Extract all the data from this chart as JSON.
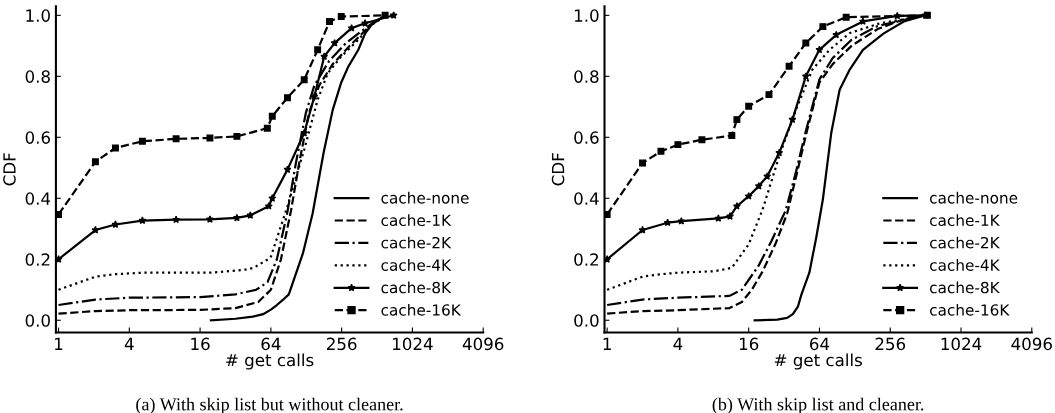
{
  "chart_data": [
    {
      "type": "line",
      "xlabel": "# get calls",
      "ylabel": "CDF",
      "log": "x",
      "xlim": [
        0.95,
        4096
      ],
      "xticks": [
        1,
        4,
        16,
        64,
        256,
        1024,
        4096
      ],
      "ylim": [
        -0.04,
        1.03
      ],
      "yticks": [
        {
          "value": 0,
          "label": "0.0"
        },
        {
          "value": 0.2,
          "label": "0.2"
        },
        {
          "value": 0.4,
          "label": "0.4"
        },
        {
          "value": 0.6,
          "label": "0.6"
        },
        {
          "value": 0.8,
          "label": "0.8"
        },
        {
          "value": 1,
          "label": "1.0"
        }
      ],
      "grid": false,
      "legend": "bottom right",
      "annotations": [
        "(a) With skip list but without cleaner."
      ],
      "series": [
        {
          "name": "cache-none",
          "color": "#000000",
          "line_style": "solid",
          "marker": "none",
          "x": [
            19.8,
            32,
            45,
            55,
            64,
            72,
            80,
            91,
            120,
            145,
            180,
            215,
            254,
            290,
            355,
            405,
            461,
            600
          ],
          "values": [
            0,
            0.005,
            0.012,
            0.02,
            0.035,
            0.05,
            0.065,
            0.085,
            0.22,
            0.35,
            0.55,
            0.69,
            0.78,
            0.83,
            0.887,
            0.94,
            0.97,
            1.0
          ]
        },
        {
          "name": "cache-1K",
          "color": "#000000",
          "line_style": "dashed",
          "marker": "none",
          "x": [
            1,
            2.06,
            4,
            16,
            32,
            50,
            64,
            78,
            95,
            112,
            135,
            165,
            215,
            300,
            405,
            491,
            622
          ],
          "values": [
            0.022,
            0.03,
            0.033,
            0.034,
            0.04,
            0.06,
            0.1,
            0.2,
            0.36,
            0.52,
            0.68,
            0.77,
            0.84,
            0.9,
            0.95,
            0.98,
            1.0
          ]
        },
        {
          "name": "cache-2K",
          "color": "#000000",
          "line_style": "dashdot",
          "marker": "none",
          "x": [
            1,
            2.06,
            4,
            16,
            32,
            48,
            60,
            72,
            88,
            105,
            127,
            150,
            200,
            280,
            400,
            491,
            622
          ],
          "values": [
            0.05,
            0.068,
            0.074,
            0.076,
            0.085,
            0.1,
            0.125,
            0.2,
            0.35,
            0.52,
            0.68,
            0.77,
            0.85,
            0.91,
            0.955,
            0.98,
            1.0
          ]
        },
        {
          "name": "cache-4K",
          "color": "#000000",
          "line_style": "dotted",
          "marker": "none",
          "x": [
            1,
            2.06,
            3.05,
            5.17,
            19.4,
            37.5,
            45.6,
            63.6,
            88.6,
            123,
            160,
            195,
            254,
            355,
            461,
            622
          ],
          "values": [
            0.1,
            0.143,
            0.151,
            0.156,
            0.156,
            0.165,
            0.172,
            0.205,
            0.374,
            0.56,
            0.723,
            0.81,
            0.865,
            0.92,
            0.969,
            1.0
          ]
        },
        {
          "name": "cache-8K",
          "color": "#000000",
          "line_style": "solid",
          "marker": "star",
          "x": [
            1,
            2.06,
            3.05,
            5.17,
            10,
            19.4,
            32.9,
            42.8,
            61.4,
            65.8,
            88.6,
            123,
            150,
            182,
            223,
            311,
            405,
            709
          ],
          "values": [
            0.2,
            0.296,
            0.314,
            0.327,
            0.33,
            0.331,
            0.336,
            0.344,
            0.374,
            0.4,
            0.494,
            0.614,
            0.734,
            0.865,
            0.909,
            0.958,
            0.974,
            1.0
          ]
        },
        {
          "name": "cache-16K",
          "color": "#000000",
          "line_style": "dashed",
          "marker": "square",
          "x": [
            1,
            2.06,
            3.05,
            5.17,
            10,
            19.4,
            32.9,
            59.7,
            65.8,
            88.6,
            123,
            160,
            202,
            254,
            600
          ],
          "values": [
            0.347,
            0.52,
            0.565,
            0.587,
            0.595,
            0.598,
            0.603,
            0.63,
            0.669,
            0.73,
            0.789,
            0.887,
            0.98,
            0.996,
            1.0
          ]
        }
      ]
    },
    {
      "type": "line",
      "xlabel": "# get calls",
      "ylabel": "CDF",
      "log": "x",
      "xlim": [
        0.95,
        4096
      ],
      "xticks": [
        1,
        4,
        16,
        64,
        256,
        1024,
        4096
      ],
      "ylim": [
        -0.04,
        1.03
      ],
      "yticks": [
        {
          "value": 0,
          "label": "0.0"
        },
        {
          "value": 0.2,
          "label": "0.2"
        },
        {
          "value": 0.4,
          "label": "0.4"
        },
        {
          "value": 0.6,
          "label": "0.6"
        },
        {
          "value": 0.8,
          "label": "0.8"
        },
        {
          "value": 1,
          "label": "1.0"
        }
      ],
      "grid": false,
      "legend": "bottom right",
      "annotations": [
        "(b) With skip list and cleaner."
      ],
      "series": [
        {
          "name": "cache-none",
          "color": "#000000",
          "line_style": "solid",
          "marker": "none",
          "x": [
            18,
            28,
            34,
            38,
            42,
            45,
            52.5,
            60,
            68.4,
            80.6,
            95,
            115,
            150,
            224,
            334,
            511
          ],
          "values": [
            0,
            0.002,
            0.008,
            0.02,
            0.045,
            0.085,
            0.156,
            0.27,
            0.396,
            0.614,
            0.756,
            0.82,
            0.887,
            0.94,
            0.98,
            1.0
          ]
        },
        {
          "name": "cache-1K",
          "color": "#000000",
          "line_style": "dashed",
          "marker": "none",
          "x": [
            1,
            2,
            4,
            11,
            14,
            17,
            21,
            27,
            34,
            41,
            50,
            64,
            83,
            120,
            200,
            350,
            500
          ],
          "values": [
            0.022,
            0.03,
            0.033,
            0.04,
            0.06,
            0.1,
            0.16,
            0.25,
            0.35,
            0.48,
            0.62,
            0.78,
            0.84,
            0.9,
            0.955,
            0.99,
            1.0
          ]
        },
        {
          "name": "cache-2K",
          "color": "#000000",
          "line_style": "dashdot",
          "marker": "none",
          "x": [
            1,
            2,
            4,
            11,
            14,
            19.5,
            25,
            33,
            40,
            49,
            64,
            83,
            120,
            200,
            500
          ],
          "values": [
            0.05,
            0.068,
            0.074,
            0.08,
            0.1,
            0.18,
            0.26,
            0.36,
            0.48,
            0.62,
            0.79,
            0.86,
            0.92,
            0.965,
            1.0
          ]
        },
        {
          "name": "cache-4K",
          "color": "#000000",
          "line_style": "dotted",
          "marker": "none",
          "x": [
            1,
            2,
            2.87,
            4,
            8.26,
            11.5,
            16,
            21,
            29.1,
            40.3,
            55.7,
            78,
            116,
            209,
            530
          ],
          "values": [
            0.1,
            0.143,
            0.151,
            0.156,
            0.161,
            0.172,
            0.249,
            0.363,
            0.538,
            0.69,
            0.822,
            0.887,
            0.942,
            0.974,
            1.0
          ]
        },
        {
          "name": "cache-8K",
          "color": "#000000",
          "line_style": "solid",
          "marker": "star",
          "x": [
            1,
            2,
            3.27,
            4.28,
            8.84,
            11.1,
            12.7,
            16,
            19.5,
            23,
            29.1,
            37.7,
            49,
            63.9,
            88.9,
            150,
            294,
            511
          ],
          "values": [
            0.2,
            0.296,
            0.32,
            0.325,
            0.334,
            0.341,
            0.374,
            0.407,
            0.44,
            0.472,
            0.549,
            0.658,
            0.8,
            0.887,
            0.936,
            0.98,
            0.998,
            1.0
          ]
        },
        {
          "name": "cache-16K",
          "color": "#000000",
          "line_style": "dashed",
          "marker": "square",
          "x": [
            1,
            2,
            2.87,
            4,
            6.4,
            11.5,
            12.7,
            16,
            23.8,
            35.3,
            49,
            68.4,
            108,
            530
          ],
          "values": [
            0.347,
            0.516,
            0.554,
            0.576,
            0.592,
            0.606,
            0.658,
            0.702,
            0.74,
            0.833,
            0.909,
            0.963,
            0.994,
            1.0
          ]
        }
      ]
    }
  ]
}
